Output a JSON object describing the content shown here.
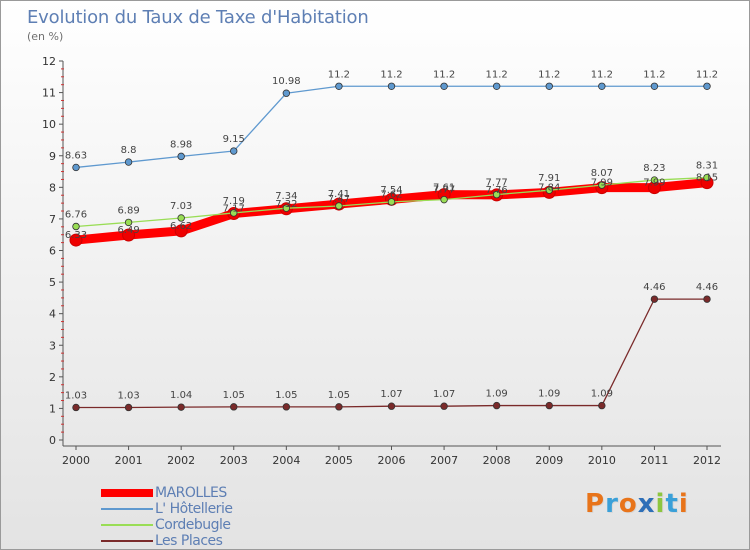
{
  "title": "Evolution du Taux de Taxe d'Habitation",
  "subtitle": "(en %)",
  "logo": {
    "text": "Proxiti",
    "colors": [
      "#e8741a",
      "#3aa0d8",
      "#e8741a",
      "#2e6fb8",
      "#8dc63f",
      "#3aa0d8",
      "#e8741a"
    ]
  },
  "chart_data": {
    "type": "line",
    "x": [
      "2000",
      "2001",
      "2002",
      "2003",
      "2004",
      "2005",
      "2006",
      "2007",
      "2008",
      "2009",
      "2010",
      "2011",
      "2012"
    ],
    "ylim": [
      0,
      12
    ],
    "yticks": [
      "0",
      "1",
      "2",
      "3",
      "4",
      "5",
      "6",
      "7",
      "8",
      "9",
      "10",
      "11",
      "12"
    ],
    "grid": false,
    "legend_position": "bottom-left",
    "series": [
      {
        "name": "MAROLLES",
        "color": "#ff0000",
        "style": "thick",
        "values": [
          6.33,
          6.49,
          6.62,
          7.17,
          7.32,
          7.47,
          7.62,
          7.77,
          7.76,
          7.84,
          7.99,
          7.99,
          8.15
        ],
        "labels": [
          "6.33",
          "6.49",
          "6.62",
          "7.17",
          "7.32",
          "7.47",
          "7.62",
          "7.77",
          "7.76",
          "7.84",
          "7.99",
          "7.99",
          "8.15"
        ]
      },
      {
        "name": "L' Hôtellerie",
        "color": "#5f99cf",
        "style": "thin",
        "values": [
          8.63,
          8.8,
          8.98,
          9.15,
          10.98,
          11.2,
          11.2,
          11.2,
          11.2,
          11.2,
          11.2,
          11.2,
          11.2
        ],
        "labels": [
          "8.63",
          "8.8",
          "8.98",
          "9.15",
          "10.98",
          "11.2",
          "11.2",
          "11.2",
          "11.2",
          "11.2",
          "11.2",
          "11.2",
          "11.2"
        ]
      },
      {
        "name": "Cordebugle",
        "color": "#99dd55",
        "style": "thin",
        "values": [
          6.76,
          6.89,
          7.03,
          7.19,
          7.34,
          7.41,
          7.54,
          7.61,
          7.77,
          7.91,
          8.07,
          8.23,
          8.31
        ],
        "labels": [
          "6.76",
          "6.89",
          "7.03",
          "7.19",
          "7.34",
          "7.41",
          "7.54",
          "7.61",
          "7.77",
          "7.91",
          "8.07",
          "8.23",
          "8.31"
        ]
      },
      {
        "name": "Les Places",
        "color": "#7a2a2a",
        "style": "thin",
        "values": [
          1.03,
          1.03,
          1.04,
          1.05,
          1.05,
          1.05,
          1.07,
          1.07,
          1.09,
          1.09,
          1.09,
          4.46,
          4.46
        ],
        "labels": [
          "1.03",
          "1.03",
          "1.04",
          "1.05",
          "1.05",
          "1.05",
          "1.07",
          "1.07",
          "1.09",
          "1.09",
          "1.09",
          "4.46",
          "4.46"
        ]
      }
    ]
  }
}
